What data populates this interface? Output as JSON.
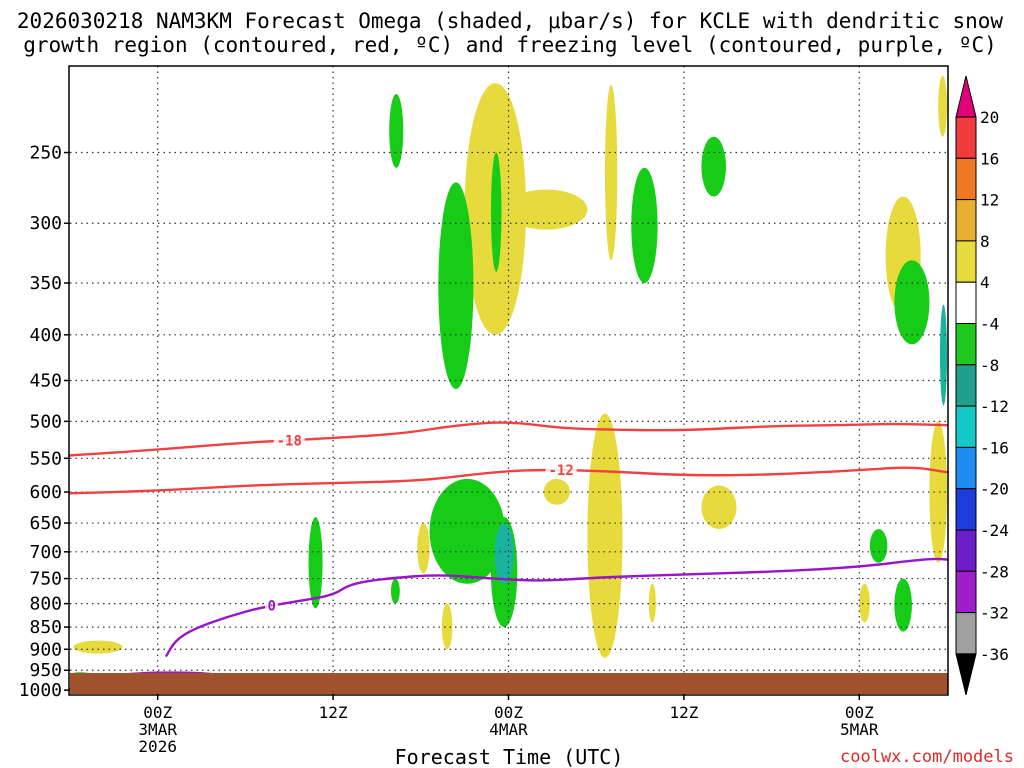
{
  "chart_data": {
    "type": "heatmap",
    "title_lines": [
      "2026030218 NAM3KM Forecast Omega (shaded, μbar/s) for KCLE with dendritic snow",
      "growth region (contoured, red, ºC) and freezing level (contoured, purple, ºC)"
    ],
    "xlabel": "Forecast Time (UTC)",
    "credit": "coolwx.com/models",
    "x_range_hours": [
      -5,
      45
    ],
    "y_range_hpa": [
      200,
      1010
    ],
    "y_ticks": [
      250,
      300,
      350,
      400,
      450,
      500,
      550,
      600,
      650,
      700,
      750,
      800,
      850,
      900,
      950,
      1000
    ],
    "x_ticks": [
      {
        "hour": 0,
        "lines": [
          "00Z",
          "3MAR",
          "2026"
        ]
      },
      {
        "hour": 10,
        "lines": [
          "12Z"
        ]
      },
      {
        "hour": 20,
        "lines": [
          "00Z",
          "4MAR"
        ]
      },
      {
        "hour": 30,
        "lines": [
          "12Z"
        ]
      },
      {
        "hour": 40,
        "lines": [
          "00Z",
          "5MAR"
        ]
      }
    ],
    "colorbar": {
      "labels": [
        "20",
        "16",
        "12",
        "8",
        "4",
        "-4",
        "-8",
        "-12",
        "-16",
        "-20",
        "-24",
        "-28",
        "-32",
        "-36"
      ],
      "colors": [
        "#e0007a",
        "#f03c3c",
        "#f07820",
        "#e8b030",
        "#e8dc3c",
        "#ffffff",
        "#1ec81e",
        "#1ea08c",
        "#14c8c8",
        "#1e8cf0",
        "#1e3cdc",
        "#6e1ec8",
        "#a01ec8",
        "#a0a0a0",
        "#000000"
      ]
    },
    "omega_regions": [
      {
        "shade": "yellow",
        "t": [
          17.5,
          21.0
        ],
        "p": [
          209,
          400
        ]
      },
      {
        "shade": "yellow",
        "t": [
          25.5,
          26.2
        ],
        "p": [
          210,
          330
        ]
      },
      {
        "shade": "yellow",
        "t": [
          19.8,
          24.5
        ],
        "p": [
          275,
          305
        ]
      },
      {
        "shade": "yellow",
        "t": [
          24.5,
          26.5
        ],
        "p": [
          490,
          920
        ]
      },
      {
        "shade": "yellow",
        "t": [
          31.0,
          33.0
        ],
        "p": [
          590,
          660
        ]
      },
      {
        "shade": "yellow",
        "t": [
          28.0,
          28.4
        ],
        "p": [
          760,
          840
        ]
      },
      {
        "shade": "yellow",
        "t": [
          14.8,
          15.5
        ],
        "p": [
          650,
          740
        ]
      },
      {
        "shade": "yellow",
        "t": [
          16.2,
          16.8
        ],
        "p": [
          800,
          900
        ]
      },
      {
        "shade": "yellow",
        "t": [
          22.0,
          23.5
        ],
        "p": [
          580,
          620
        ]
      },
      {
        "shade": "yellow",
        "t": [
          -4.8,
          -2.0
        ],
        "p": [
          880,
          910
        ]
      },
      {
        "shade": "yellow",
        "t": [
          41.5,
          43.5
        ],
        "p": [
          280,
          380
        ]
      },
      {
        "shade": "yellow",
        "t": [
          44.0,
          45.0
        ],
        "p": [
          500,
          720
        ]
      },
      {
        "shade": "yellow",
        "t": [
          44.5,
          45.0
        ],
        "p": [
          205,
          240
        ]
      },
      {
        "shade": "yellow",
        "t": [
          40.0,
          40.6
        ],
        "p": [
          760,
          840
        ]
      },
      {
        "shade": "green",
        "t": [
          16.0,
          18.0
        ],
        "p": [
          270,
          460
        ]
      },
      {
        "shade": "green",
        "t": [
          19.0,
          19.6
        ],
        "p": [
          250,
          340
        ]
      },
      {
        "shade": "green",
        "t": [
          13.2,
          14.0
        ],
        "p": [
          215,
          260
        ]
      },
      {
        "shade": "green",
        "t": [
          15.5,
          19.8
        ],
        "p": [
          580,
          760
        ]
      },
      {
        "shade": "green",
        "t": [
          19.0,
          20.5
        ],
        "p": [
          640,
          850
        ]
      },
      {
        "shade": "green",
        "t": [
          8.6,
          9.4
        ],
        "p": [
          640,
          810
        ]
      },
      {
        "shade": "green",
        "t": [
          27.0,
          28.5
        ],
        "p": [
          260,
          350
        ]
      },
      {
        "shade": "green",
        "t": [
          31.0,
          32.4
        ],
        "p": [
          240,
          280
        ]
      },
      {
        "shade": "green",
        "t": [
          42.0,
          44.0
        ],
        "p": [
          330,
          410
        ]
      },
      {
        "shade": "green",
        "t": [
          40.6,
          41.6
        ],
        "p": [
          660,
          720
        ]
      },
      {
        "shade": "green",
        "t": [
          42.0,
          43.0
        ],
        "p": [
          750,
          860
        ]
      },
      {
        "shade": "green",
        "t": [
          -5.0,
          -3.8
        ],
        "p": [
          955,
          965
        ]
      },
      {
        "shade": "green",
        "t": [
          13.3,
          13.8
        ],
        "p": [
          750,
          800
        ]
      },
      {
        "shade": "cyan",
        "t": [
          19.2,
          20.3
        ],
        "p": [
          650,
          760
        ]
      },
      {
        "shade": "cyan",
        "t": [
          44.6,
          45.0
        ],
        "p": [
          370,
          480
        ]
      }
    ],
    "isotherms": [
      {
        "label": "-18",
        "color": "#f04040",
        "label_hour": 7.5,
        "points": [
          [
            -5,
            546
          ],
          [
            0,
            538
          ],
          [
            5,
            528
          ],
          [
            10,
            522
          ],
          [
            14,
            516
          ],
          [
            17,
            505
          ],
          [
            20,
            500
          ],
          [
            23,
            509
          ],
          [
            26,
            511
          ],
          [
            30,
            512
          ],
          [
            35,
            506
          ],
          [
            39,
            505
          ],
          [
            42,
            503
          ],
          [
            45,
            505
          ]
        ]
      },
      {
        "label": "-12",
        "color": "#f04040",
        "label_hour": 23.0,
        "points": [
          [
            -5,
            602
          ],
          [
            0,
            598
          ],
          [
            5,
            590
          ],
          [
            10,
            586
          ],
          [
            15,
            583
          ],
          [
            19,
            570
          ],
          [
            22,
            566
          ],
          [
            26,
            569
          ],
          [
            30,
            575
          ],
          [
            35,
            574
          ],
          [
            40,
            567
          ],
          [
            43,
            562
          ],
          [
            45,
            570
          ]
        ]
      },
      {
        "label": "0",
        "color": "#9a14c8",
        "label_hour": 6.5,
        "points": [
          [
            0.5,
            915
          ],
          [
            1,
            880
          ],
          [
            2,
            855
          ],
          [
            4,
            827
          ],
          [
            6,
            807
          ],
          [
            8,
            795
          ],
          [
            10,
            783
          ],
          [
            11,
            760
          ],
          [
            13,
            750
          ],
          [
            16,
            742
          ],
          [
            19,
            750
          ],
          [
            22,
            755
          ],
          [
            25,
            748
          ],
          [
            30,
            742
          ],
          [
            35,
            737
          ],
          [
            40,
            728
          ],
          [
            44,
            712
          ],
          [
            45,
            714
          ]
        ]
      },
      {
        "label": "",
        "color": "#9a14c8",
        "label_hour": null,
        "points": [
          [
            -1.8,
            960
          ],
          [
            0,
            955
          ],
          [
            3,
            957
          ],
          [
            5,
            972
          ],
          [
            7,
            970
          ],
          [
            9,
            967
          ],
          [
            11,
            970
          ],
          [
            12.5,
            975
          ]
        ]
      },
      {
        "label": "",
        "color": "#9a14c8",
        "label_hour": null,
        "points": [
          [
            -2.5,
            990
          ],
          [
            -3.5,
            992
          ],
          [
            -4.5,
            995
          ],
          [
            -5,
            997
          ]
        ]
      },
      {
        "label": "",
        "color": "#9a14c8",
        "label_hour": null,
        "points": [
          [
            24,
            963
          ],
          [
            26,
            960
          ],
          [
            29,
            962
          ],
          [
            32,
            964
          ],
          [
            33.8,
            966
          ]
        ]
      }
    ]
  }
}
